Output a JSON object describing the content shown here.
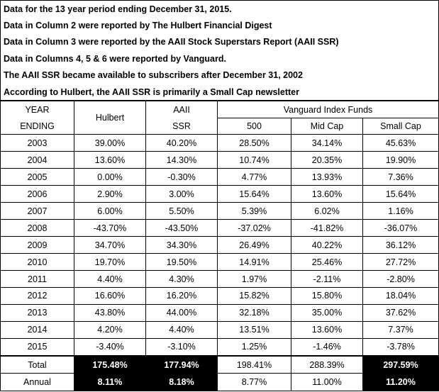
{
  "notes": [
    "Data for the 13 year period ending December 31, 2015.",
    "Data in Column 2 were reported by The Hulbert Financial Digest",
    "Data in Column 3 were reported by the AAII Stock Superstars Report (AAII SSR)",
    "Data in Columns 4, 5 & 6 were reported by Vanguard.",
    "The AAII SSR became available to subscribers after December 31, 2002",
    "According to Hulbert, the AAII SSR is primarily a Small Cap newsletter"
  ],
  "header": {
    "year_top": "YEAR",
    "year_bottom": "ENDING",
    "hulbert": "Hulbert",
    "aaii_top": "AAII",
    "aaii_bottom": "SSR",
    "vanguard": "Vanguard Index Funds",
    "col_500": "500",
    "col_mid": "Mid Cap",
    "col_small": "Small Cap"
  },
  "rows": [
    {
      "year": "2003",
      "hulbert": "39.00%",
      "aaii": "40.20%",
      "v500": "28.50%",
      "mid": "34.14%",
      "small": "45.63%"
    },
    {
      "year": "2004",
      "hulbert": "13.60%",
      "aaii": "14.30%",
      "v500": "10.74%",
      "mid": "20.35%",
      "small": "19.90%"
    },
    {
      "year": "2005",
      "hulbert": "0.00%",
      "aaii": "-0.30%",
      "v500": "4.77%",
      "mid": "13.93%",
      "small": "7.36%"
    },
    {
      "year": "2006",
      "hulbert": "2.90%",
      "aaii": "3.00%",
      "v500": "15.64%",
      "mid": "13.60%",
      "small": "15.64%"
    },
    {
      "year": "2007",
      "hulbert": "6.00%",
      "aaii": "5.50%",
      "v500": "5.39%",
      "mid": "6.02%",
      "small": "1.16%"
    },
    {
      "year": "2008",
      "hulbert": "-43.70%",
      "aaii": "-43.50%",
      "v500": "-37.02%",
      "mid": "-41.82%",
      "small": "-36.07%"
    },
    {
      "year": "2009",
      "hulbert": "34.70%",
      "aaii": "34.30%",
      "v500": "26.49%",
      "mid": "40.22%",
      "small": "36.12%"
    },
    {
      "year": "2010",
      "hulbert": "19.70%",
      "aaii": "19.50%",
      "v500": "14.91%",
      "mid": "25.46%",
      "small": "27.72%"
    },
    {
      "year": "2011",
      "hulbert": "4.40%",
      "aaii": "4.30%",
      "v500": "1.97%",
      "mid": "-2.11%",
      "small": "-2.80%"
    },
    {
      "year": "2012",
      "hulbert": "16.60%",
      "aaii": "16.20%",
      "v500": "15.82%",
      "mid": "15.80%",
      "small": "18.04%"
    },
    {
      "year": "2013",
      "hulbert": "43.80%",
      "aaii": "44.00%",
      "v500": "32.18%",
      "mid": "35.00%",
      "small": "37.62%"
    },
    {
      "year": "2014",
      "hulbert": "4.20%",
      "aaii": "4.40%",
      "v500": "13.51%",
      "mid": "13.60%",
      "small": "7.37%"
    },
    {
      "year": "2015",
      "hulbert": "-3.40%",
      "aaii": "-3.10%",
      "v500": "1.25%",
      "mid": "-1.46%",
      "small": "-3.78%"
    }
  ],
  "total": {
    "label": "Total",
    "hulbert": "175.48%",
    "aaii": "177.94%",
    "v500": "198.41%",
    "mid": "288.39%",
    "small": "297.59%"
  },
  "annual": {
    "label": "Annual",
    "hulbert": "8.11%",
    "aaii": "8.18%",
    "v500": "8.77%",
    "mid": "11.00%",
    "small": "11.20%"
  },
  "colors": {
    "highlight_bg": "#000000",
    "highlight_text": "#ffffff"
  }
}
